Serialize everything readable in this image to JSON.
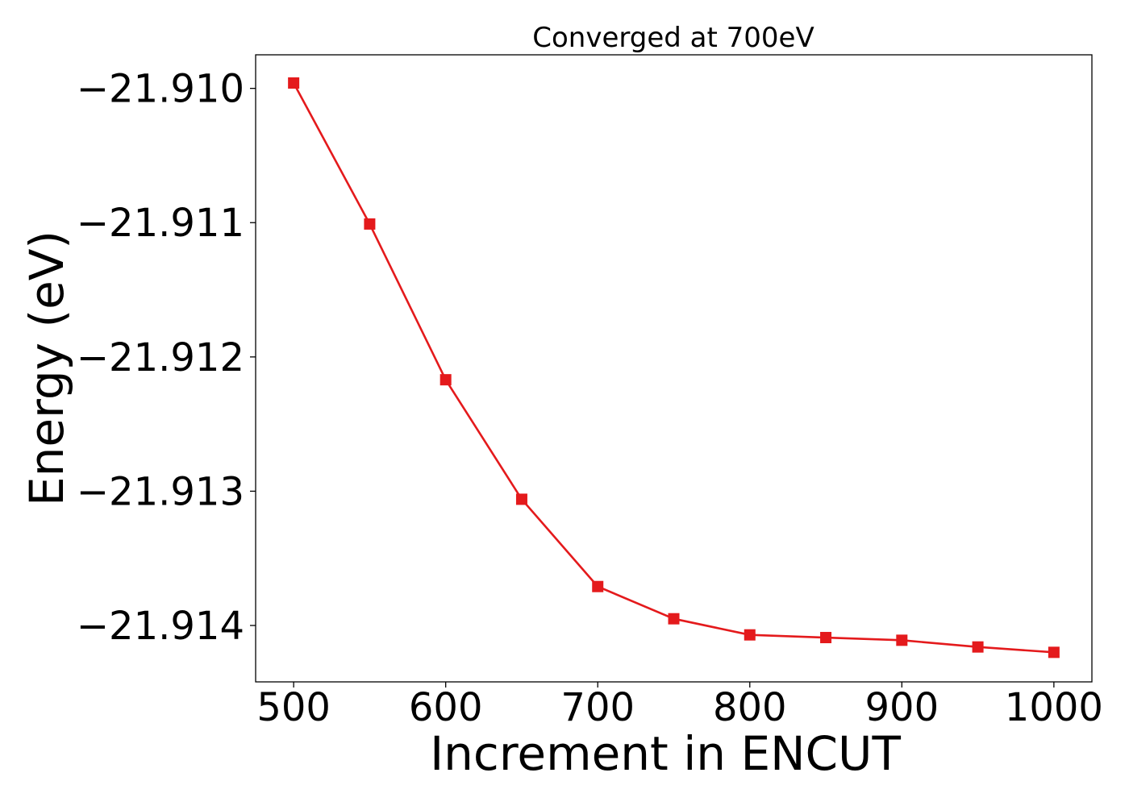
{
  "chart_data": {
    "type": "line",
    "title": "Converged at 700eV",
    "xlabel": "Increment in ENCUT",
    "ylabel": "Energy (eV)",
    "x": [
      500,
      550,
      600,
      650,
      700,
      750,
      800,
      850,
      900,
      950,
      1000
    ],
    "series": [
      {
        "values": [
          -21.90996,
          -21.91101,
          -21.91217,
          -21.91306,
          -21.91371,
          -21.91395,
          -21.91407,
          -21.91409,
          -21.91411,
          -21.91416,
          -21.9142
        ],
        "color": "#e41a1c",
        "marker": "square"
      }
    ],
    "xlim": [
      475,
      1025
    ],
    "ylim": [
      -21.91442,
      -21.90975
    ],
    "xticks": [
      500,
      600,
      700,
      800,
      900,
      1000
    ],
    "xtick_labels": [
      "500",
      "600",
      "700",
      "800",
      "900",
      "1000"
    ],
    "yticks": [
      -21.91,
      -21.911,
      -21.912,
      -21.913,
      -21.914
    ],
    "ytick_labels": [
      "−21.910",
      "−21.911",
      "−21.912",
      "−21.913",
      "−21.914"
    ],
    "grid": false,
    "legend": "none"
  }
}
